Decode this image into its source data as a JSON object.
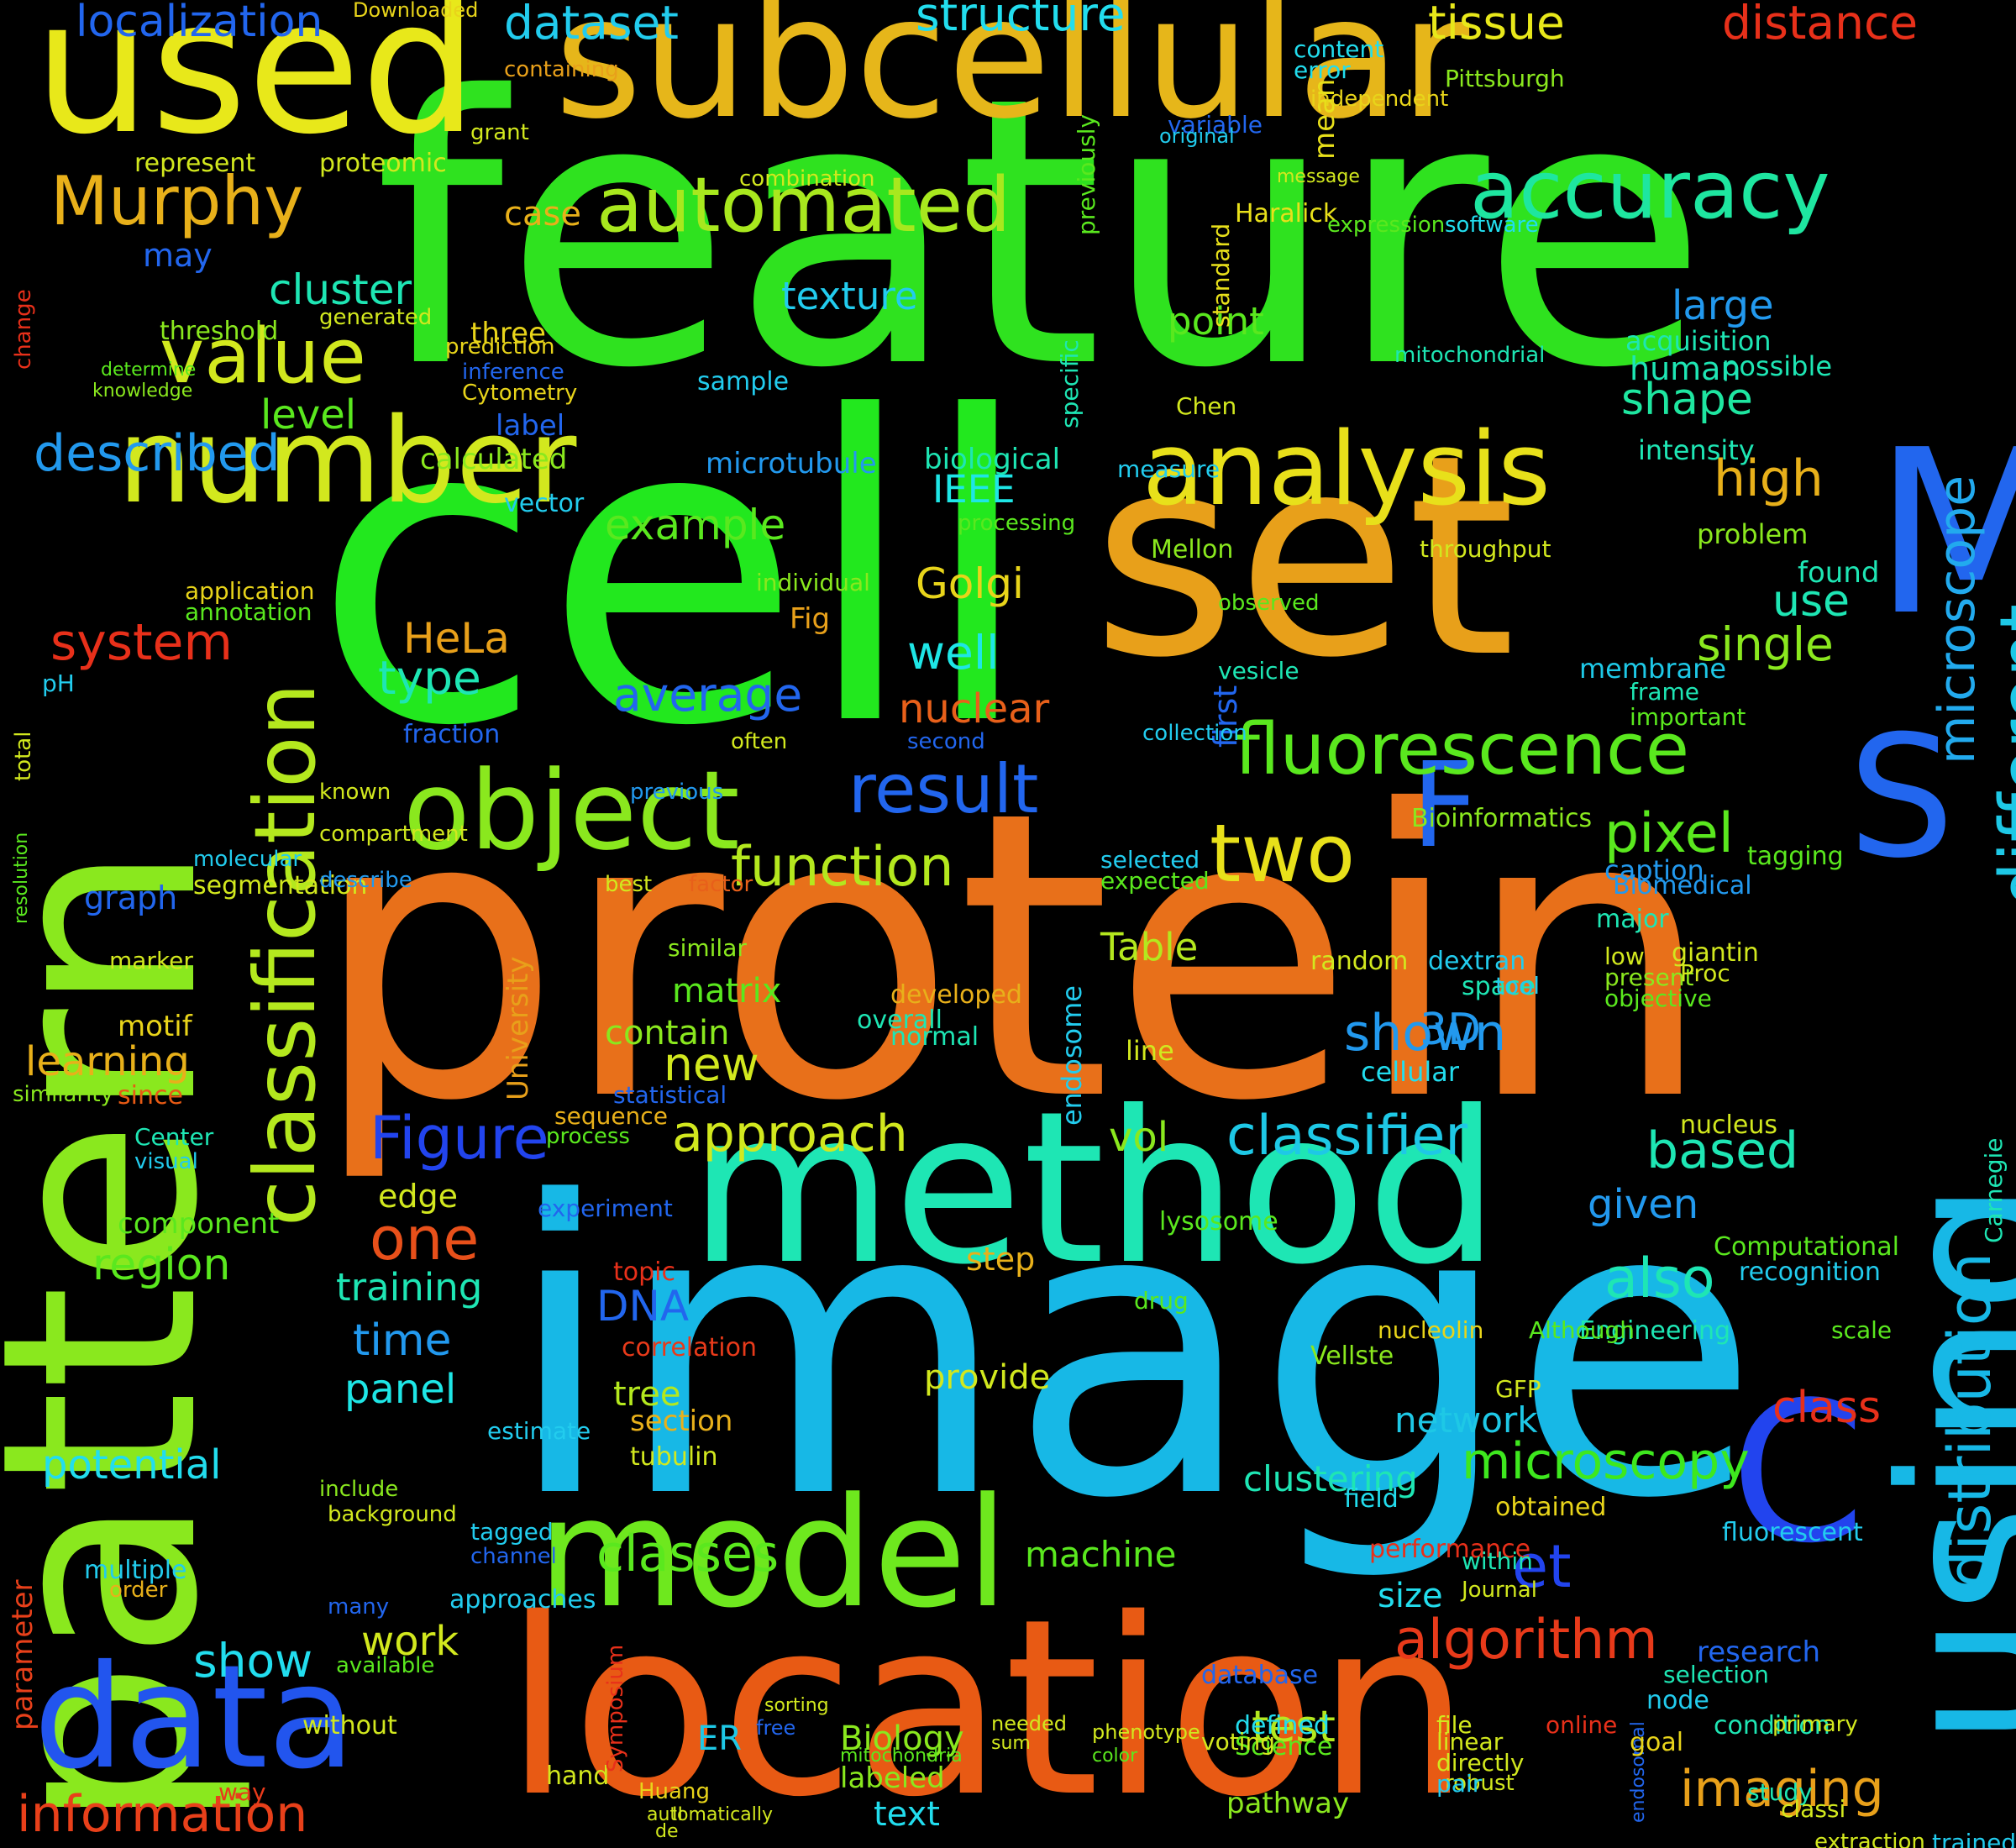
{
  "words": [
    {
      "text": "feature",
      "color": "#2fe21f"
    },
    {
      "text": "cell",
      "color": "#22e81e"
    },
    {
      "text": "set",
      "color": "#e8a01a"
    },
    {
      "text": "protein",
      "color": "#e8701a"
    },
    {
      "text": "image",
      "color": "#17b8e6"
    },
    {
      "text": "pattern",
      "color": "#8ae81e"
    },
    {
      "text": "subcellular",
      "color": "#e6b61a"
    },
    {
      "text": "location",
      "color": "#e85a14"
    },
    {
      "text": "method",
      "color": "#1ee6b4"
    },
    {
      "text": "used",
      "color": "#e8e81a"
    },
    {
      "text": "model",
      "color": "#6ee81e"
    },
    {
      "text": "number",
      "color": "#d2e81e"
    },
    {
      "text": "data",
      "color": "#2255ee"
    },
    {
      "text": "using",
      "color": "#17b8e6"
    },
    {
      "text": "analysis",
      "color": "#e8e01a"
    },
    {
      "text": "object",
      "color": "#8ae81e"
    },
    {
      "text": "classification",
      "color": "#b4e81e"
    },
    {
      "text": "M",
      "color": "#2266ee"
    },
    {
      "text": "S",
      "color": "#2266ee"
    },
    {
      "text": "C",
      "color": "#2244ee"
    },
    {
      "text": "F",
      "color": "#2266ee"
    },
    {
      "text": "accuracy",
      "color": "#1ee6a0"
    },
    {
      "text": "automated",
      "color": "#a8e81e"
    },
    {
      "text": "Murphy",
      "color": "#e8b01a"
    },
    {
      "text": "value",
      "color": "#d2e81e"
    },
    {
      "text": "described",
      "color": "#2299ee"
    },
    {
      "text": "fluorescence",
      "color": "#5ae81e"
    },
    {
      "text": "result",
      "color": "#2266ee"
    },
    {
      "text": "two",
      "color": "#e8e01a"
    },
    {
      "text": "pixel",
      "color": "#5ae81e"
    },
    {
      "text": "different",
      "color": "#1ec8e6"
    },
    {
      "text": "distribution",
      "color": "#17b8e6"
    },
    {
      "text": "microscope",
      "color": "#22aaee"
    },
    {
      "text": "function",
      "color": "#b4e81e"
    },
    {
      "text": "Figure",
      "color": "#2244ee"
    },
    {
      "text": "approach",
      "color": "#d2e81e"
    },
    {
      "text": "classifier",
      "color": "#1ec8e6"
    },
    {
      "text": "based",
      "color": "#1ee6b4"
    },
    {
      "text": "algorithm",
      "color": "#e83a1a"
    },
    {
      "text": "microscopy",
      "color": "#3ee81e"
    },
    {
      "text": "classes",
      "color": "#5ae81e"
    },
    {
      "text": "information",
      "color": "#e8401a"
    },
    {
      "text": "imaging",
      "color": "#e8a01a"
    },
    {
      "text": "dataset",
      "color": "#22ccee"
    },
    {
      "text": "structure",
      "color": "#22ddee"
    },
    {
      "text": "tissue",
      "color": "#e8e81a"
    },
    {
      "text": "distance",
      "color": "#e8301a"
    },
    {
      "text": "localization",
      "color": "#2266ee"
    },
    {
      "text": "system",
      "color": "#e8301a"
    },
    {
      "text": "type",
      "color": "#1ee6b4"
    },
    {
      "text": "example",
      "color": "#5ae81e"
    },
    {
      "text": "average",
      "color": "#2266ee"
    },
    {
      "text": "nuclear",
      "color": "#e8601a"
    },
    {
      "text": "Golgi",
      "color": "#e8d41a"
    },
    {
      "text": "HeLa",
      "color": "#e8a01a"
    },
    {
      "text": "well",
      "color": "#1ee6e6"
    },
    {
      "text": "single",
      "color": "#8ae81e"
    },
    {
      "text": "use",
      "color": "#1ee6b4"
    },
    {
      "text": "high",
      "color": "#e8b01a"
    },
    {
      "text": "shape",
      "color": "#1ee6a0"
    },
    {
      "text": "large",
      "color": "#2299ee"
    },
    {
      "text": "human",
      "color": "#1ee6b4"
    },
    {
      "text": "point",
      "color": "#5ae81e"
    },
    {
      "text": "level",
      "color": "#5ae81e"
    },
    {
      "text": "cluster",
      "color": "#1ee6b4"
    },
    {
      "text": "texture",
      "color": "#22ccee"
    },
    {
      "text": "new",
      "color": "#d2e81e"
    },
    {
      "text": "shown",
      "color": "#2299ee"
    },
    {
      "text": "training",
      "color": "#1ee6b4"
    },
    {
      "text": "time",
      "color": "#2299ee"
    },
    {
      "text": "panel",
      "color": "#1ee6e6"
    },
    {
      "text": "potential",
      "color": "#22ddee"
    },
    {
      "text": "show",
      "color": "#22ddee"
    },
    {
      "text": "work",
      "color": "#d2e81e"
    },
    {
      "text": "region",
      "color": "#5ae81e"
    },
    {
      "text": "one",
      "color": "#e8501a"
    },
    {
      "text": "learning",
      "color": "#e8b01a"
    },
    {
      "text": "Table",
      "color": "#b4e81e"
    },
    {
      "text": "matrix",
      "color": "#5ae81e"
    },
    {
      "text": "contain",
      "color": "#8ae81e"
    },
    {
      "text": "tree",
      "color": "#b4e81e"
    },
    {
      "text": "DNA",
      "color": "#2266ee"
    },
    {
      "text": "network",
      "color": "#1ec8e6"
    },
    {
      "text": "class",
      "color": "#e8301a"
    },
    {
      "text": "clustering",
      "color": "#1ee6b4"
    },
    {
      "text": "test",
      "color": "#b4e81e"
    },
    {
      "text": "also",
      "color": "#1ee6b4"
    },
    {
      "text": "given",
      "color": "#2299ee"
    },
    {
      "text": "et",
      "color": "#2244ee"
    },
    {
      "text": "vol",
      "color": "#8ae81e"
    },
    {
      "text": "3D",
      "color": "#2299ee"
    },
    {
      "text": "machine",
      "color": "#5ae81e"
    },
    {
      "text": "size",
      "color": "#22ddee"
    },
    {
      "text": "Biology",
      "color": "#8ae81e"
    },
    {
      "text": "ER",
      "color": "#1ec8e6"
    },
    {
      "text": "labeled",
      "color": "#8ae81e"
    },
    {
      "text": "text",
      "color": "#22ddee"
    },
    {
      "text": "pathway",
      "color": "#8ae81e"
    },
    {
      "text": "research",
      "color": "#2266ee"
    },
    {
      "text": "selection",
      "color": "#1ee6b4"
    },
    {
      "text": "provide",
      "color": "#d2e81e"
    },
    {
      "text": "section",
      "color": "#e8b01a"
    },
    {
      "text": "tubulin",
      "color": "#d2e81e"
    },
    {
      "text": "IEEE",
      "color": "#1ee6e6"
    },
    {
      "text": "biological",
      "color": "#1ee6b4"
    },
    {
      "text": "microtubule",
      "color": "#2299ee"
    },
    {
      "text": "calculated",
      "color": "#8ae81e"
    },
    {
      "text": "label",
      "color": "#2266ee"
    },
    {
      "text": "sample",
      "color": "#22ccee"
    },
    {
      "text": "Cytometry",
      "color": "#e8d41a"
    },
    {
      "text": "three",
      "color": "#e8d41a"
    },
    {
      "text": "threshold",
      "color": "#8ae81e"
    },
    {
      "text": "may",
      "color": "#2266ee"
    },
    {
      "text": "represent",
      "color": "#d2e81e"
    },
    {
      "text": "proteomic",
      "color": "#d2e81e"
    },
    {
      "text": "combination",
      "color": "#d2e81e"
    },
    {
      "text": "case",
      "color": "#e8b01a"
    },
    {
      "text": "Haralick",
      "color": "#e8e01a"
    },
    {
      "text": "expression",
      "color": "#5ae81e"
    },
    {
      "text": "software",
      "color": "#22ddee"
    },
    {
      "text": "mean",
      "color": "#e8e01a"
    },
    {
      "text": "content",
      "color": "#22ddee"
    },
    {
      "text": "error",
      "color": "#22ddee"
    },
    {
      "text": "Pittsburgh",
      "color": "#8ae81e"
    },
    {
      "text": "found",
      "color": "#1ee6b4"
    },
    {
      "text": "membrane",
      "color": "#1ec8e6"
    },
    {
      "text": "problem",
      "color": "#8ae81e"
    },
    {
      "text": "intensity",
      "color": "#1ee6b4"
    },
    {
      "text": "possible",
      "color": "#1ee6b4"
    },
    {
      "text": "acquisition",
      "color": "#1ee6b4"
    },
    {
      "text": "caption",
      "color": "#2299ee"
    },
    {
      "text": "tagging",
      "color": "#5ae81e"
    },
    {
      "text": "Biomedical",
      "color": "#2299ee"
    },
    {
      "text": "Bioinformatics",
      "color": "#8ae81e"
    },
    {
      "text": "major",
      "color": "#1ee6b4"
    },
    {
      "text": "dextran",
      "color": "#22ccee"
    },
    {
      "text": "space",
      "color": "#1ee6b4"
    },
    {
      "text": "present",
      "color": "#8ae81e"
    },
    {
      "text": "objective",
      "color": "#5ae81e"
    },
    {
      "text": "cellular",
      "color": "#22ddee"
    },
    {
      "text": "line",
      "color": "#d2e81e"
    },
    {
      "text": "edge",
      "color": "#d2e81e"
    },
    {
      "text": "component",
      "color": "#5ae81e"
    },
    {
      "text": "experiment",
      "color": "#2266ee"
    },
    {
      "text": "motif",
      "color": "#e8d41a"
    },
    {
      "text": "marker",
      "color": "#d2e81e"
    },
    {
      "text": "since",
      "color": "#e85a14"
    },
    {
      "text": "Center",
      "color": "#1ee6b4"
    },
    {
      "text": "visual",
      "color": "#22ccee"
    },
    {
      "text": "multiple",
      "color": "#22ccee"
    },
    {
      "text": "order",
      "color": "#e8b01a"
    },
    {
      "text": "parameter",
      "color": "#e8401a"
    },
    {
      "text": "University",
      "color": "#e8a01a"
    },
    {
      "text": "similar",
      "color": "#8ae81e"
    },
    {
      "text": "approaches",
      "color": "#22ccee"
    },
    {
      "text": "many",
      "color": "#2266ee"
    },
    {
      "text": "available",
      "color": "#5ae81e"
    },
    {
      "text": "without",
      "color": "#d2e81e"
    },
    {
      "text": "way",
      "color": "#e83a1a"
    },
    {
      "text": "defined",
      "color": "#22ddee"
    },
    {
      "text": "Science",
      "color": "#5ae81e"
    },
    {
      "text": "database",
      "color": "#2266ee"
    },
    {
      "text": "performance",
      "color": "#e8301a"
    },
    {
      "text": "obtained",
      "color": "#e8d41a"
    },
    {
      "text": "Journal",
      "color": "#d2e81e"
    },
    {
      "text": "within",
      "color": "#1ee6b4"
    },
    {
      "text": "condition",
      "color": "#1ee6b4"
    },
    {
      "text": "node",
      "color": "#22ccee"
    },
    {
      "text": "fluorescent",
      "color": "#22ccee"
    },
    {
      "text": "recognition",
      "color": "#22ccee"
    },
    {
      "text": "step",
      "color": "#e8b01a"
    },
    {
      "text": "fraction",
      "color": "#2266ee"
    },
    {
      "text": "vector",
      "color": "#22ccee"
    },
    {
      "text": "first",
      "color": "#2266ee"
    },
    {
      "text": "observed",
      "color": "#5ae81e"
    },
    {
      "text": "vesicle",
      "color": "#1ee6b4"
    },
    {
      "text": "frame",
      "color": "#1ee6b4"
    },
    {
      "text": "important",
      "color": "#5ae81e"
    },
    {
      "text": "endosome",
      "color": "#22ccee"
    },
    {
      "text": "selected",
      "color": "#22ccee"
    },
    {
      "text": "expected",
      "color": "#5ae81e"
    },
    {
      "text": "similarity",
      "color": "#8ae81e"
    },
    {
      "text": "Proc",
      "color": "#d2e81e"
    },
    {
      "text": "standard",
      "color": "#d2e81e"
    },
    {
      "text": "previously",
      "color": "#e8e01a"
    },
    {
      "text": "specific",
      "color": "#5ae81e"
    },
    {
      "text": "graph",
      "color": "#1ee6b4"
    },
    {
      "text": "Fig",
      "color": "#2266ee"
    },
    {
      "text": "pH",
      "color": "#e8a01a"
    },
    {
      "text": "application",
      "color": "#22ccee"
    },
    {
      "text": "annotation",
      "color": "#e8d41a"
    },
    {
      "text": "total",
      "color": "#5ae81e"
    },
    {
      "text": "change",
      "color": "#d2e81e"
    },
    {
      "text": "resolution",
      "color": "#e8301a"
    },
    {
      "text": "segmentation",
      "color": "#5ae81e"
    },
    {
      "text": "best",
      "color": "#d2e81e"
    },
    {
      "text": "factor",
      "color": "#d2e81e"
    },
    {
      "text": "previous",
      "color": "#e8601a"
    },
    {
      "text": "known",
      "color": "#2299ee"
    },
    {
      "text": "describe",
      "color": "#d2e81e"
    },
    {
      "text": "compartment",
      "color": "#2299ee"
    },
    {
      "text": "molecular",
      "color": "#d2e81e"
    },
    {
      "text": "statistical",
      "color": "#22ccee"
    },
    {
      "text": "sequence",
      "color": "#2266ee"
    },
    {
      "text": "process",
      "color": "#e8b01a"
    },
    {
      "text": "correlation",
      "color": "#5ae81e"
    },
    {
      "text": "topic",
      "color": "#e83a1a"
    },
    {
      "text": "tagged",
      "color": "#e8301a"
    },
    {
      "text": "channel",
      "color": "#22ccee"
    },
    {
      "text": "background",
      "color": "#2266ee"
    },
    {
      "text": "include",
      "color": "#d2e81e"
    },
    {
      "text": "estimate",
      "color": "#8ae81e"
    },
    {
      "text": "often",
      "color": "#22ccee"
    },
    {
      "text": "second",
      "color": "#d2e81e"
    },
    {
      "text": "collection",
      "color": "#2266ee"
    },
    {
      "text": "random",
      "color": "#22ccee"
    },
    {
      "text": "tool",
      "color": "#d2e81e"
    },
    {
      "text": "lysosome",
      "color": "#22ccee"
    },
    {
      "text": "drug",
      "color": "#5ae81e"
    },
    {
      "text": "nucleolin",
      "color": "#5ae81e"
    },
    {
      "text": "field",
      "color": "#e8d41a"
    },
    {
      "text": "nucleus",
      "color": "#22ddee"
    },
    {
      "text": "Carnegie",
      "color": "#d2e81e"
    },
    {
      "text": "Computational",
      "color": "#1ee6b4"
    },
    {
      "text": "Engineering",
      "color": "#5ae81e"
    },
    {
      "text": "scale",
      "color": "#1ee6b4"
    },
    {
      "text": "giantin",
      "color": "#5ae81e"
    },
    {
      "text": "low",
      "color": "#d2e81e"
    },
    {
      "text": "developed",
      "color": "#d2e81e"
    },
    {
      "text": "overall",
      "color": "#e8b01a"
    },
    {
      "text": "normal",
      "color": "#1ee6b4"
    },
    {
      "text": "Vellste",
      "color": "#1ee6b4"
    },
    {
      "text": "GFP",
      "color": "#8ae81e"
    },
    {
      "text": "Although",
      "color": "#d2e81e"
    },
    {
      "text": "throughput",
      "color": "#5ae81e"
    },
    {
      "text": "Mellon",
      "color": "#d2e81e"
    },
    {
      "text": "processing",
      "color": "#8ae81e"
    },
    {
      "text": "individual",
      "color": "#5ae81e"
    },
    {
      "text": "containing",
      "color": "#8ae81e"
    },
    {
      "text": "grant",
      "color": "#e8a01a"
    },
    {
      "text": "variable",
      "color": "#d2e81e"
    },
    {
      "text": "original",
      "color": "#2266ee"
    },
    {
      "text": "independent",
      "color": "#22ccee"
    },
    {
      "text": "message",
      "color": "#e8d41a"
    },
    {
      "text": "mitochondrial",
      "color": "#d2e81e"
    },
    {
      "text": "Chen",
      "color": "#1ee6b4"
    },
    {
      "text": "measure",
      "color": "#d2e81e"
    },
    {
      "text": "prediction",
      "color": "#22ccee"
    },
    {
      "text": "generated",
      "color": "#e8d41a"
    },
    {
      "text": "inference",
      "color": "#d2e81e"
    },
    {
      "text": "determine",
      "color": "#2266ee"
    },
    {
      "text": "knowledge",
      "color": "#5ae81e"
    },
    {
      "text": "endosomal",
      "color": "#8ae81e"
    },
    {
      "text": "automatically",
      "color": "#2266ee"
    },
    {
      "text": "Huang",
      "color": "#d2e81e"
    },
    {
      "text": "hand",
      "color": "#e8d41a"
    },
    {
      "text": "robust",
      "color": "#d2e81e"
    },
    {
      "text": "voting",
      "color": "#d2e81e"
    },
    {
      "text": "linear",
      "color": "#22ddee"
    },
    {
      "text": "goal",
      "color": "#e8d41a"
    },
    {
      "text": "study",
      "color": "#1ee6b4"
    },
    {
      "text": "classi",
      "color": "#d2e81e"
    },
    {
      "text": "extraction",
      "color": "#d2e81e"
    },
    {
      "text": "trained",
      "color": "#22ccee"
    },
    {
      "text": "primary",
      "color": "#d2e81e"
    },
    {
      "text": "online",
      "color": "#e8301a"
    },
    {
      "text": "file",
      "color": "#d2e81e"
    },
    {
      "text": "directly",
      "color": "#d2e81e"
    },
    {
      "text": "pair",
      "color": "#22ccee"
    },
    {
      "text": "ratio",
      "color": "#d2e81e"
    },
    {
      "text": "phenotype",
      "color": "#d2e81e"
    },
    {
      "text": "color",
      "color": "#5ae81e"
    },
    {
      "text": "needed",
      "color": "#d2e81e"
    },
    {
      "text": "sum",
      "color": "#d2e81e"
    },
    {
      "text": "free",
      "color": "#2266ee"
    },
    {
      "text": "sorting",
      "color": "#d2e81e"
    },
    {
      "text": "mitochondria",
      "color": "#5ae81e"
    },
    {
      "text": "Symposium",
      "color": "#e8301a"
    },
    {
      "text": "II",
      "color": "#d2e81e"
    },
    {
      "text": "de",
      "color": "#d2e81e"
    },
    {
      "text": "Downloaded",
      "color": "#e8d41a"
    }
  ]
}
